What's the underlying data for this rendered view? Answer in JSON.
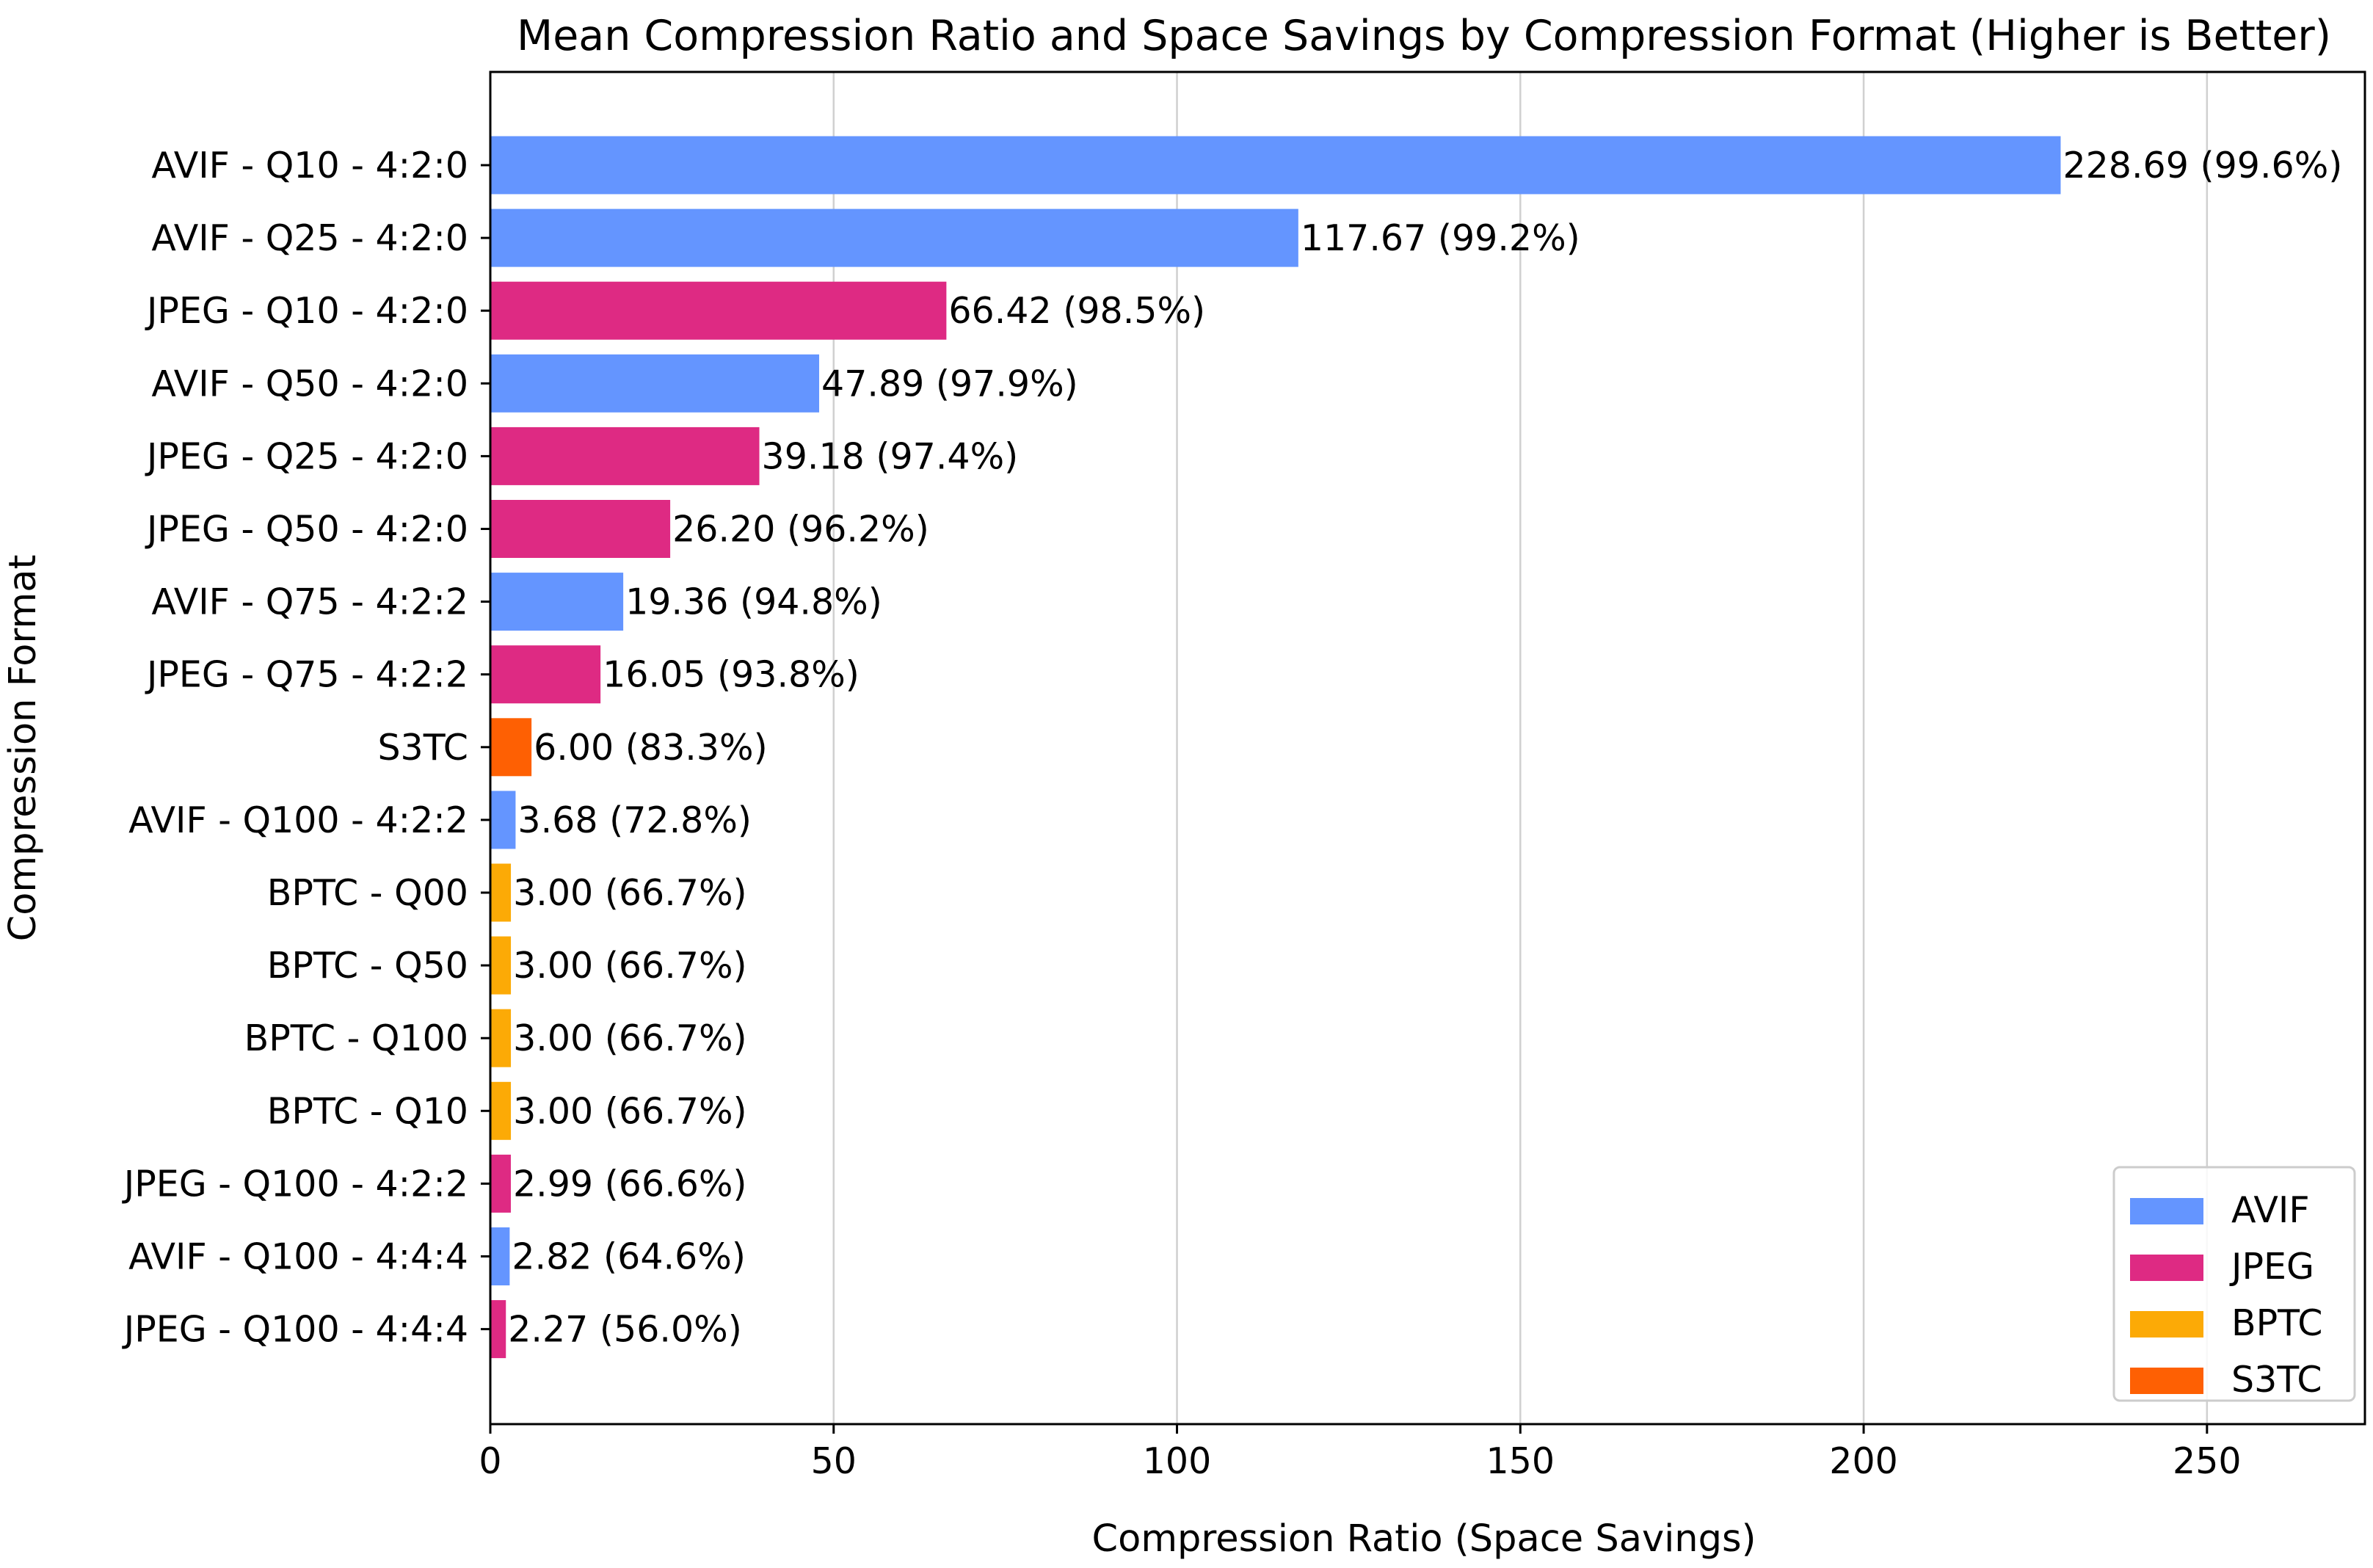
{
  "chart_data": {
    "type": "bar",
    "orientation": "horizontal",
    "title": "Mean Compression Ratio and Space Savings by Compression Format (Higher is Better)",
    "xlabel": "Compression Ratio (Space Savings)",
    "ylabel": "Compression Format",
    "xlim": [
      0,
      273
    ],
    "xticks": [
      0,
      50,
      100,
      150,
      200,
      250
    ],
    "grid": "vertical",
    "legend_position": "bottom-right",
    "colors": {
      "AVIF": "#6495FF",
      "JPEG": "#DE2A83",
      "BPTC": "#FCAA06",
      "S3TC": "#FE6003"
    },
    "legend": [
      "AVIF",
      "JPEG",
      "BPTC",
      "S3TC"
    ],
    "bars": [
      {
        "category": "AVIF - Q10 - 4:2:0",
        "group": "AVIF",
        "value": 228.69,
        "label": "228.69 (99.6%)"
      },
      {
        "category": "AVIF - Q25 - 4:2:0",
        "group": "AVIF",
        "value": 117.67,
        "label": "117.67 (99.2%)"
      },
      {
        "category": "JPEG - Q10 - 4:2:0",
        "group": "JPEG",
        "value": 66.42,
        "label": "66.42 (98.5%)"
      },
      {
        "category": "AVIF - Q50 - 4:2:0",
        "group": "AVIF",
        "value": 47.89,
        "label": "47.89 (97.9%)"
      },
      {
        "category": "JPEG - Q25 - 4:2:0",
        "group": "JPEG",
        "value": 39.18,
        "label": "39.18 (97.4%)"
      },
      {
        "category": "JPEG - Q50 - 4:2:0",
        "group": "JPEG",
        "value": 26.2,
        "label": "26.20 (96.2%)"
      },
      {
        "category": "AVIF - Q75 - 4:2:2",
        "group": "AVIF",
        "value": 19.36,
        "label": "19.36 (94.8%)"
      },
      {
        "category": "JPEG - Q75 - 4:2:2",
        "group": "JPEG",
        "value": 16.05,
        "label": "16.05 (93.8%)"
      },
      {
        "category": "S3TC",
        "group": "S3TC",
        "value": 6.0,
        "label": "6.00 (83.3%)"
      },
      {
        "category": "AVIF - Q100 - 4:2:2",
        "group": "AVIF",
        "value": 3.68,
        "label": "3.68 (72.8%)"
      },
      {
        "category": "BPTC - Q00",
        "group": "BPTC",
        "value": 3.0,
        "label": "3.00 (66.7%)"
      },
      {
        "category": "BPTC - Q50",
        "group": "BPTC",
        "value": 3.0,
        "label": "3.00 (66.7%)"
      },
      {
        "category": "BPTC - Q100",
        "group": "BPTC",
        "value": 3.0,
        "label": "3.00 (66.7%)"
      },
      {
        "category": "BPTC - Q10",
        "group": "BPTC",
        "value": 3.0,
        "label": "3.00 (66.7%)"
      },
      {
        "category": "JPEG - Q100 - 4:2:2",
        "group": "JPEG",
        "value": 2.99,
        "label": "2.99 (66.6%)"
      },
      {
        "category": "AVIF - Q100 - 4:4:4",
        "group": "AVIF",
        "value": 2.82,
        "label": "2.82 (64.6%)"
      },
      {
        "category": "JPEG - Q100 - 4:4:4",
        "group": "JPEG",
        "value": 2.27,
        "label": "2.27 (56.0%)"
      }
    ]
  }
}
